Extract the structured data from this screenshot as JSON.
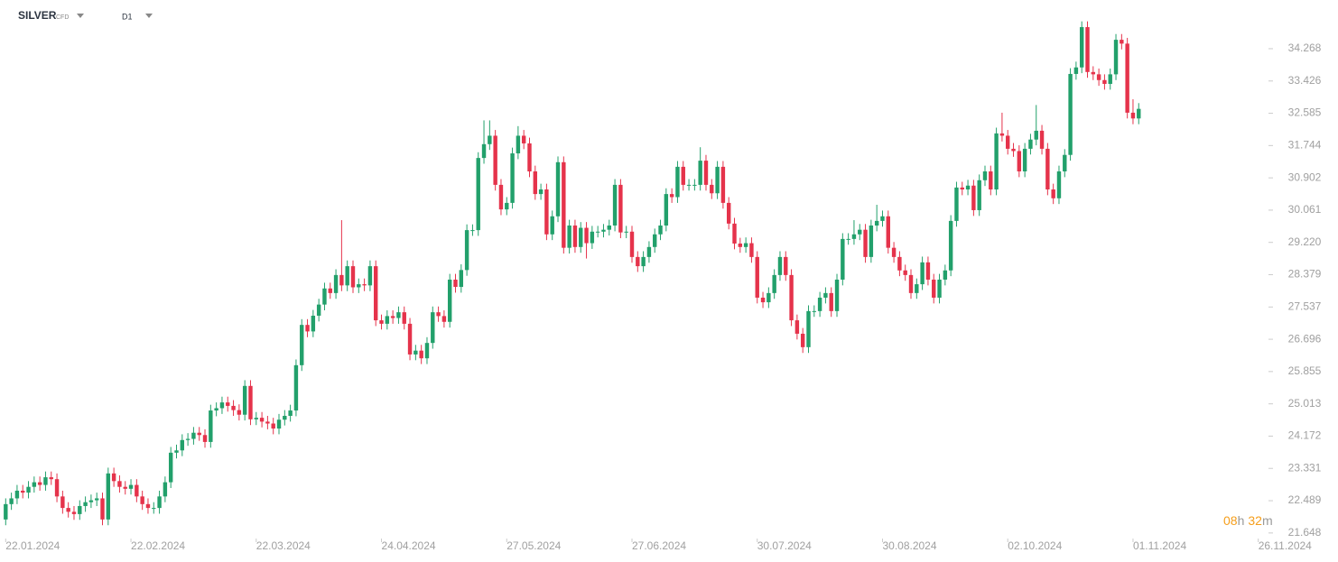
{
  "chart_data": {
    "type": "candlestick",
    "title": "SILVER",
    "subtitle": "CFD",
    "timeframe": "D1",
    "up_color": "#22a06b",
    "down_color": "#e5334b",
    "open": [
      22.0,
      22.4,
      22.55,
      22.75,
      22.7,
      22.85,
      22.97,
      22.9,
      23.1,
      23.05,
      22.6,
      22.3,
      22.2,
      22.14,
      22.35,
      22.45,
      22.5,
      22.55,
      22.0,
      23.2,
      23.0,
      22.85,
      22.8,
      22.9,
      22.6,
      22.4,
      22.3,
      22.3,
      22.6,
      22.97,
      23.74,
      23.8,
      24.07,
      24.1,
      24.26,
      24.2,
      24.02,
      24.84,
      24.9,
      25.05,
      24.96,
      24.85,
      24.73,
      25.48,
      24.61,
      24.65,
      24.55,
      24.5,
      24.37,
      24.6,
      24.7,
      24.84,
      26.02,
      27.07,
      26.9,
      27.31,
      27.6,
      28.02,
      27.9,
      28.37,
      28.1,
      28.6,
      28.05,
      28.13,
      28.1,
      28.6,
      27.19,
      27.1,
      27.3,
      27.25,
      27.4,
      27.1,
      26.3,
      26.4,
      26.2,
      26.6,
      27.4,
      27.3,
      27.15,
      28.25,
      28.06,
      28.5,
      29.54,
      29.54,
      31.42,
      31.78,
      32.0,
      30.72,
      30.08,
      30.25,
      31.54,
      32.0,
      31.8,
      31.07,
      30.48,
      30.6,
      29.43,
      29.9,
      31.31,
      29.08,
      29.66,
      29.1,
      29.6,
      29.2,
      29.5,
      29.5,
      29.55,
      29.66,
      30.72,
      29.48,
      29.5,
      28.84,
      28.6,
      28.84,
      29.1,
      29.43,
      29.66,
      30.48,
      30.4,
      31.19,
      30.72,
      30.72,
      30.72,
      31.35,
      30.72,
      30.5,
      31.19,
      30.25,
      29.71,
      29.19,
      29.1,
      29.2,
      28.84,
      27.78,
      27.66,
      27.9,
      28.37,
      28.84,
      28.37,
      27.19,
      26.84,
      26.49,
      27.43,
      27.43,
      27.78,
      27.9,
      27.43,
      28.25,
      29.31,
      29.31,
      29.43,
      29.55,
      28.84,
      29.66,
      29.78,
      29.9,
      29.08,
      28.84,
      28.49,
      28.37,
      27.9,
      28.13,
      28.7,
      28.25,
      27.78,
      28.25,
      28.49,
      29.78,
      30.65,
      30.6,
      30.7,
      30.06,
      30.84,
      31.07,
      30.6,
      32.06,
      32.0,
      31.66,
      31.6,
      31.07,
      31.66,
      31.9,
      32.13,
      31.66,
      30.6,
      30.37,
      31.07,
      31.5,
      33.61,
      33.78,
      34.83,
      33.66,
      33.6,
      33.45,
      33.35,
      33.6,
      34.5,
      34.4,
      32.6,
      32.45
    ],
    "high": [
      22.55,
      22.7,
      22.9,
      22.9,
      23.0,
      23.12,
      23.12,
      23.25,
      23.25,
      23.2,
      22.75,
      22.45,
      22.35,
      22.5,
      22.6,
      22.65,
      22.7,
      22.7,
      23.35,
      23.35,
      23.15,
      23.0,
      23.05,
      23.05,
      22.75,
      22.55,
      22.45,
      22.75,
      23.12,
      23.89,
      23.95,
      24.22,
      24.25,
      24.41,
      24.41,
      24.35,
      24.99,
      25.05,
      25.2,
      25.2,
      25.11,
      25.0,
      25.63,
      25.63,
      24.8,
      24.8,
      24.7,
      24.65,
      24.75,
      24.85,
      24.99,
      26.17,
      27.22,
      27.22,
      27.46,
      27.75,
      28.17,
      28.17,
      28.52,
      29.8,
      28.75,
      28.75,
      28.28,
      28.28,
      28.75,
      28.75,
      27.34,
      27.45,
      27.45,
      27.55,
      27.55,
      27.25,
      26.55,
      26.55,
      26.75,
      27.55,
      27.55,
      27.45,
      28.4,
      28.4,
      28.65,
      29.69,
      29.69,
      31.57,
      32.4,
      32.4,
      32.15,
      30.87,
      30.4,
      31.69,
      32.25,
      32.15,
      31.95,
      31.22,
      30.75,
      30.75,
      30.05,
      31.46,
      31.46,
      29.81,
      29.81,
      29.75,
      29.75,
      29.65,
      29.65,
      29.7,
      29.81,
      30.87,
      30.87,
      29.65,
      29.65,
      28.99,
      28.99,
      29.25,
      29.58,
      29.81,
      30.63,
      30.63,
      31.34,
      31.34,
      30.87,
      30.87,
      31.7,
      31.5,
      30.87,
      31.34,
      31.34,
      30.4,
      29.86,
      29.34,
      29.35,
      29.35,
      28.99,
      27.93,
      28.05,
      28.52,
      28.99,
      28.99,
      28.52,
      27.34,
      26.99,
      27.58,
      27.58,
      27.93,
      28.05,
      28.05,
      28.4,
      29.46,
      29.46,
      29.8,
      29.7,
      29.7,
      29.81,
      30.2,
      30.05,
      30.05,
      29.23,
      28.99,
      28.64,
      28.52,
      28.28,
      28.85,
      28.85,
      28.4,
      28.4,
      28.64,
      29.93,
      30.8,
      30.8,
      30.85,
      30.85,
      30.99,
      31.22,
      31.22,
      32.21,
      32.6,
      32.15,
      31.81,
      31.75,
      31.81,
      32.05,
      32.8,
      32.28,
      31.81,
      30.75,
      31.22,
      31.65,
      33.76,
      33.93,
      34.98,
      34.98,
      33.81,
      33.75,
      33.6,
      33.75,
      34.65,
      34.65,
      34.55,
      32.95,
      32.85
    ],
    "low": [
      21.85,
      22.25,
      22.4,
      22.55,
      22.55,
      22.7,
      22.75,
      22.75,
      22.9,
      22.45,
      22.15,
      22.05,
      21.99,
      21.99,
      22.2,
      22.3,
      22.35,
      21.85,
      21.85,
      22.85,
      22.7,
      22.65,
      22.65,
      22.45,
      22.25,
      22.15,
      22.15,
      22.15,
      22.45,
      22.82,
      23.59,
      23.65,
      23.92,
      23.95,
      24.05,
      23.87,
      23.87,
      24.69,
      24.75,
      24.81,
      24.7,
      24.58,
      24.58,
      24.46,
      24.46,
      24.4,
      24.35,
      24.22,
      24.22,
      24.45,
      24.55,
      24.69,
      25.87,
      26.75,
      26.75,
      27.16,
      27.45,
      27.75,
      27.75,
      27.95,
      27.95,
      27.9,
      27.9,
      27.95,
      27.95,
      27.04,
      26.95,
      26.95,
      27.1,
      27.1,
      26.95,
      26.15,
      26.15,
      26.05,
      26.05,
      26.45,
      27.15,
      27.0,
      27.0,
      27.91,
      27.91,
      28.35,
      29.39,
      29.39,
      31.27,
      31.63,
      30.57,
      29.93,
      29.93,
      30.1,
      31.39,
      31.65,
      30.92,
      30.33,
      30.33,
      29.28,
      29.28,
      29.75,
      28.93,
      28.93,
      28.95,
      28.95,
      28.8,
      29.05,
      29.35,
      29.35,
      29.4,
      29.51,
      29.33,
      29.33,
      28.69,
      28.45,
      28.45,
      28.69,
      28.95,
      29.28,
      29.51,
      30.25,
      30.25,
      30.57,
      30.57,
      30.57,
      30.57,
      30.57,
      30.35,
      30.35,
      30.1,
      29.56,
      29.04,
      28.95,
      28.95,
      28.69,
      27.63,
      27.51,
      27.51,
      27.75,
      28.22,
      28.22,
      27.04,
      26.69,
      26.34,
      26.34,
      27.28,
      27.28,
      27.63,
      27.28,
      27.28,
      28.1,
      29.16,
      29.16,
      29.28,
      28.69,
      28.69,
      29.51,
      29.63,
      28.93,
      28.69,
      28.34,
      28.22,
      27.75,
      27.75,
      27.98,
      28.1,
      27.63,
      27.63,
      28.1,
      28.34,
      29.63,
      30.45,
      30.45,
      29.91,
      29.91,
      30.69,
      30.45,
      30.45,
      31.85,
      31.51,
      31.45,
      30.92,
      30.92,
      31.51,
      31.75,
      31.51,
      30.45,
      30.22,
      30.22,
      30.92,
      31.35,
      33.46,
      33.63,
      33.51,
      33.45,
      33.3,
      33.2,
      33.2,
      33.45,
      34.25,
      32.45,
      32.3,
      32.3
    ],
    "close": [
      22.4,
      22.55,
      22.75,
      22.7,
      22.85,
      22.97,
      22.9,
      23.1,
      23.05,
      22.6,
      22.3,
      22.2,
      22.14,
      22.35,
      22.45,
      22.5,
      22.55,
      22.0,
      23.2,
      23.0,
      22.85,
      22.8,
      22.9,
      22.6,
      22.4,
      22.3,
      22.3,
      22.6,
      22.97,
      23.74,
      23.8,
      24.07,
      24.1,
      24.26,
      24.2,
      24.02,
      24.84,
      24.9,
      25.05,
      24.96,
      24.85,
      24.73,
      25.48,
      24.61,
      24.65,
      24.55,
      24.5,
      24.37,
      24.6,
      24.7,
      24.84,
      26.02,
      27.07,
      26.9,
      27.31,
      27.6,
      28.02,
      27.9,
      28.37,
      28.1,
      28.6,
      28.05,
      28.13,
      28.1,
      28.6,
      27.19,
      27.1,
      27.3,
      27.25,
      27.4,
      27.1,
      26.3,
      26.4,
      26.2,
      26.6,
      27.4,
      27.3,
      27.15,
      28.25,
      28.06,
      28.5,
      29.54,
      29.54,
      31.42,
      31.78,
      32.0,
      30.72,
      30.08,
      30.25,
      31.54,
      32.0,
      31.8,
      31.07,
      30.48,
      30.6,
      29.43,
      29.9,
      31.31,
      29.08,
      29.66,
      29.1,
      29.6,
      29.2,
      29.5,
      29.5,
      29.55,
      29.66,
      30.72,
      29.48,
      29.5,
      28.84,
      28.6,
      28.84,
      29.1,
      29.43,
      29.66,
      30.48,
      30.4,
      31.19,
      30.72,
      30.72,
      30.72,
      31.35,
      30.72,
      30.5,
      31.19,
      30.25,
      29.71,
      29.19,
      29.1,
      29.2,
      28.84,
      27.78,
      27.66,
      27.9,
      28.37,
      28.84,
      28.37,
      27.19,
      26.84,
      26.49,
      27.43,
      27.43,
      27.78,
      27.9,
      27.43,
      28.25,
      29.31,
      29.31,
      29.43,
      29.55,
      28.84,
      29.66,
      29.78,
      29.9,
      29.08,
      28.84,
      28.49,
      28.37,
      27.9,
      28.13,
      28.7,
      28.25,
      27.78,
      28.25,
      28.49,
      29.78,
      30.65,
      30.6,
      30.7,
      30.06,
      30.84,
      31.07,
      30.6,
      32.06,
      32.0,
      31.66,
      31.6,
      31.07,
      31.66,
      31.9,
      32.13,
      31.66,
      30.6,
      30.37,
      31.07,
      31.5,
      33.61,
      33.78,
      34.83,
      33.66,
      33.6,
      33.45,
      33.35,
      33.6,
      34.5,
      34.4,
      32.6,
      32.45,
      32.7
    ],
    "xlim": [
      -1,
      221
    ],
    "xticks": [
      {
        "value": 0,
        "label": "22.01.2024"
      },
      {
        "value": 22,
        "label": "22.02.2024"
      },
      {
        "value": 44,
        "label": "22.03.2024"
      },
      {
        "value": 66,
        "label": "24.04.2024"
      },
      {
        "value": 88,
        "label": "27.05.2024"
      },
      {
        "value": 110,
        "label": "27.06.2024"
      },
      {
        "value": 132,
        "label": "30.07.2024"
      },
      {
        "value": 154,
        "label": "30.08.2024"
      },
      {
        "value": 176,
        "label": "02.10.2024"
      },
      {
        "value": 198,
        "label": "01.11.2024"
      },
      {
        "value": 220,
        "label": "26.11.2024"
      }
    ],
    "ylim": [
      21.55,
      35.05
    ],
    "yticks": [
      34.268,
      33.426,
      32.585,
      31.744,
      30.902,
      30.061,
      {
        "value": 29.22,
        "label": "29.220"
      },
      28.379,
      27.537,
      26.696,
      25.855,
      25.013,
      24.172,
      23.331,
      22.489,
      21.648
    ]
  },
  "countdown": [
    "08",
    "h",
    "32",
    "m"
  ]
}
